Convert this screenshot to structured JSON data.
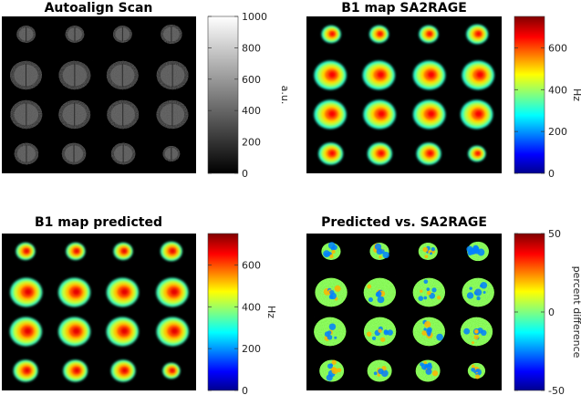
{
  "figure": {
    "panels": [
      {
        "id": "autoalign",
        "title": "Autoalign Scan",
        "map": "gray",
        "colorbar": {
          "label": "a.u.",
          "min": 0,
          "max": 1000,
          "ticks": [
            "1000",
            "800",
            "600",
            "400",
            "200",
            "0"
          ],
          "tick_values": [
            1000,
            800,
            600,
            400,
            200,
            0
          ]
        }
      },
      {
        "id": "sa2rage",
        "title": "B1 map SA2RAGE",
        "map": "jet",
        "colorbar": {
          "label": "Hz",
          "min": 0,
          "max": 750,
          "ticks": [
            "600",
            "400",
            "200",
            "0"
          ],
          "tick_values": [
            600,
            400,
            200,
            0
          ]
        }
      },
      {
        "id": "predicted",
        "title": "B1 map predicted",
        "map": "jet",
        "colorbar": {
          "label": "Hz",
          "min": 0,
          "max": 750,
          "ticks": [
            "600",
            "400",
            "200",
            "0"
          ],
          "tick_values": [
            600,
            400,
            200,
            0
          ]
        }
      },
      {
        "id": "difference",
        "title": "Predicted vs. SA2RAGE",
        "map": "jet-diff",
        "colorbar": {
          "label": "percent difference",
          "min": -50,
          "max": 50,
          "ticks": [
            "50",
            "0",
            "-50"
          ],
          "tick_values": [
            50,
            0,
            -50
          ]
        }
      }
    ],
    "grid": {
      "rows": 4,
      "cols": 4
    },
    "colors": {
      "background": "#000000",
      "page": "#ffffff"
    }
  }
}
